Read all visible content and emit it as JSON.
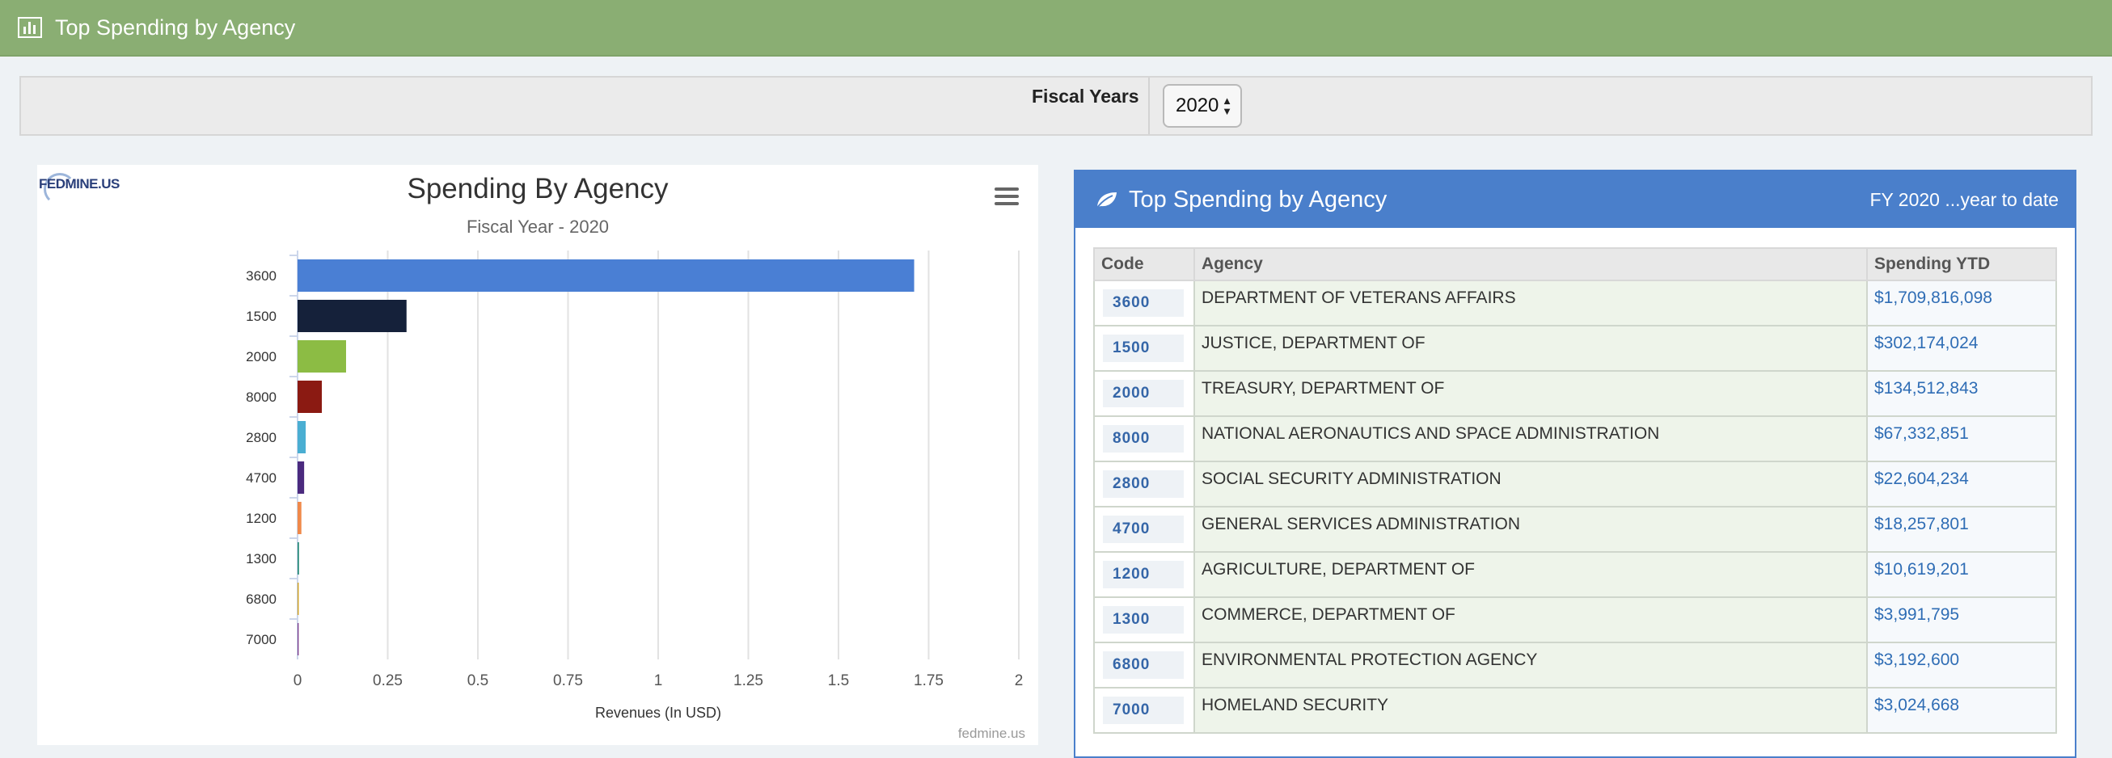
{
  "header": {
    "title": "Top Spending by Agency",
    "icon": "bar-chart-icon",
    "color": "#8aae73"
  },
  "filter": {
    "label": "Fiscal Years",
    "selected_year": "2020"
  },
  "chart_data": {
    "type": "bar",
    "orientation": "horizontal",
    "title": "Spending By Agency",
    "subtitle": "Fiscal Year - 2020",
    "xlabel": "Revenues (In USD)",
    "ylabel": "",
    "categories": [
      "3600",
      "1500",
      "2000",
      "8000",
      "2800",
      "4700",
      "1200",
      "1300",
      "6800",
      "7000"
    ],
    "values": [
      1.709816098,
      0.302174024,
      0.134512843,
      0.067332851,
      0.022604234,
      0.018257801,
      0.010619201,
      0.003991795,
      0.0031926,
      0.003024668
    ],
    "colors": [
      "#4a7fd4",
      "#15213a",
      "#8cbc44",
      "#8b1a12",
      "#4aaed2",
      "#4b2a7e",
      "#f0894a",
      "#2a8c7a",
      "#d0a020",
      "#7a3a8c"
    ],
    "xlim": [
      0,
      2
    ],
    "xticks": [
      "0",
      "0.25",
      "0.5",
      "0.75",
      "1",
      "1.25",
      "1.5",
      "1.75",
      "2"
    ],
    "grid": true,
    "legend": "none",
    "credit": "fedmine.us",
    "logo_text": "FEDMINE.US"
  },
  "table": {
    "title": "Top Spending by Agency",
    "fy_label": "FY 2020 ...year to date",
    "columns": [
      "Code",
      "Agency",
      "Spending YTD"
    ],
    "rows": [
      {
        "code": "3600",
        "agency": "DEPARTMENT OF VETERANS AFFAIRS",
        "amount": "$1,709,816,098"
      },
      {
        "code": "1500",
        "agency": "JUSTICE, DEPARTMENT OF",
        "amount": "$302,174,024"
      },
      {
        "code": "2000",
        "agency": "TREASURY, DEPARTMENT OF",
        "amount": "$134,512,843"
      },
      {
        "code": "8000",
        "agency": "NATIONAL AERONAUTICS AND SPACE ADMINISTRATION",
        "amount": "$67,332,851"
      },
      {
        "code": "2800",
        "agency": "SOCIAL SECURITY ADMINISTRATION",
        "amount": "$22,604,234"
      },
      {
        "code": "4700",
        "agency": "GENERAL SERVICES ADMINISTRATION",
        "amount": "$18,257,801"
      },
      {
        "code": "1200",
        "agency": "AGRICULTURE, DEPARTMENT OF",
        "amount": "$10,619,201"
      },
      {
        "code": "1300",
        "agency": "COMMERCE, DEPARTMENT OF",
        "amount": "$3,991,795"
      },
      {
        "code": "6800",
        "agency": "ENVIRONMENTAL PROTECTION AGENCY",
        "amount": "$3,192,600"
      },
      {
        "code": "7000",
        "agency": "HOMELAND SECURITY",
        "amount": "$3,024,668"
      }
    ]
  }
}
